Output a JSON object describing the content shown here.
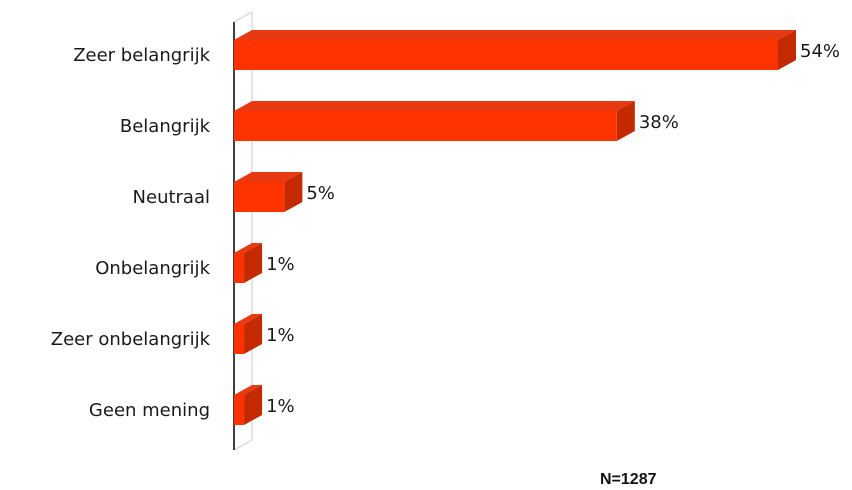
{
  "chart_data": {
    "type": "bar",
    "orientation": "horizontal",
    "style": "3d",
    "categories": [
      "Zeer belangrijk",
      "Belangrijk",
      "Neutraal",
      "Onbelangrijk",
      "Zeer onbelangrijk",
      "Geen mening"
    ],
    "values": [
      54,
      38,
      5,
      1,
      1,
      1
    ],
    "value_labels": [
      "54%",
      "38%",
      "5%",
      "1%",
      "1%",
      "1%"
    ],
    "unit": "%",
    "xlim": [
      0,
      54
    ],
    "grid": false,
    "legend": "none",
    "note": "N=1287",
    "colors": {
      "bar_front": "#ff3300",
      "bar_top": "#e83a12",
      "bar_side": "#c42a00",
      "axis": "#000000",
      "text": "#1a1a1a"
    }
  }
}
